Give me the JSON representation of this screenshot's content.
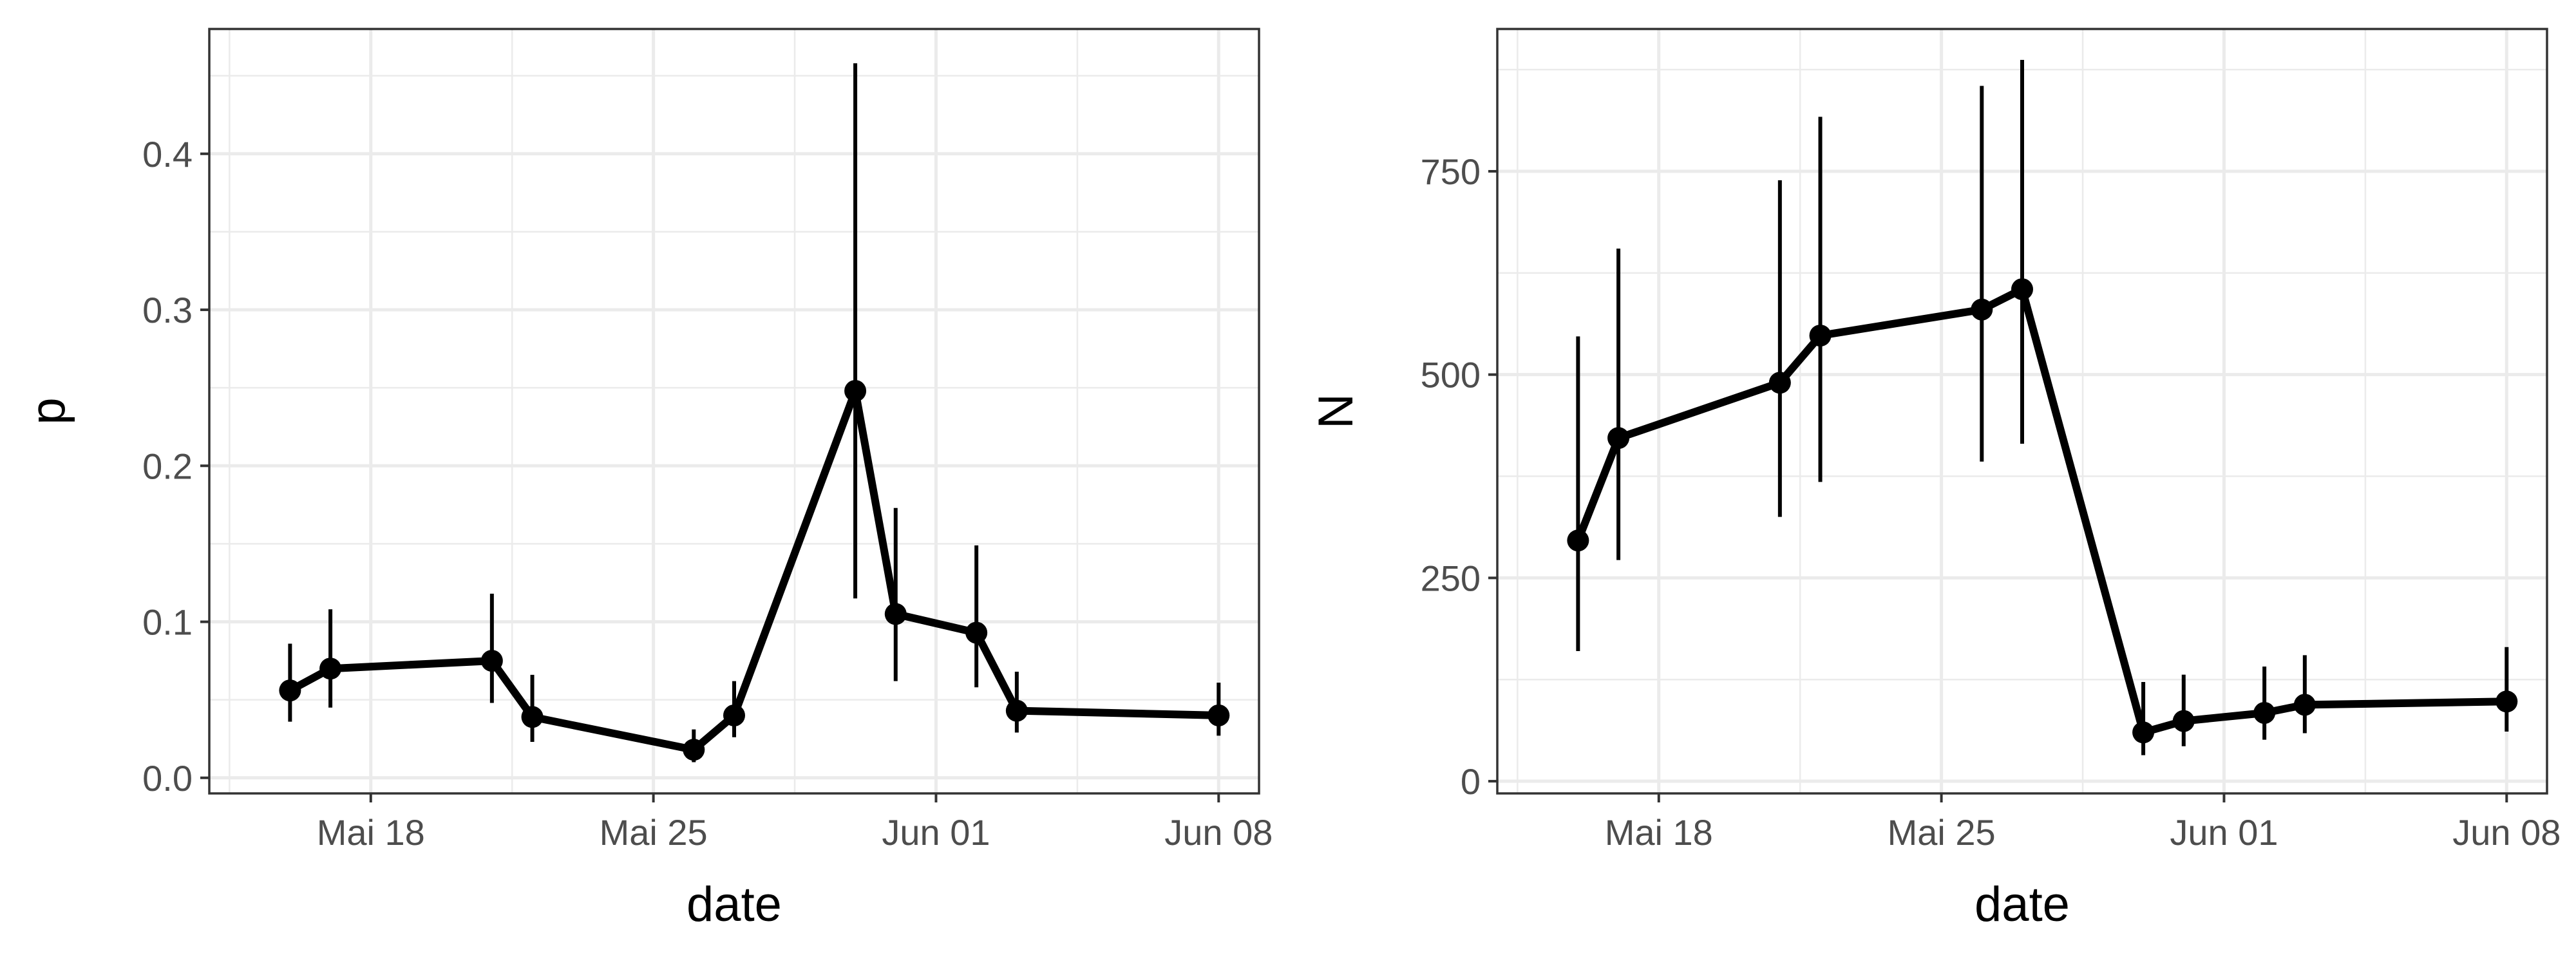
{
  "chart_data": [
    {
      "type": "line",
      "title": "",
      "xlabel": "date",
      "ylabel": "p",
      "xlim": [
        "2020-05-14",
        "2020-06-09"
      ],
      "ylim": [
        -0.01,
        0.48
      ],
      "x_ticks": [
        {
          "date": "2020-05-18",
          "label": "Mai 18"
        },
        {
          "date": "2020-05-25",
          "label": "Mai 25"
        },
        {
          "date": "2020-06-01",
          "label": "Jun 01"
        },
        {
          "date": "2020-06-08",
          "label": "Jun 08"
        }
      ],
      "y_ticks": [
        {
          "value": 0.0,
          "label": "0.0"
        },
        {
          "value": 0.1,
          "label": "0.1"
        },
        {
          "value": 0.2,
          "label": "0.2"
        },
        {
          "value": 0.3,
          "label": "0.3"
        },
        {
          "value": 0.4,
          "label": "0.4"
        }
      ],
      "grid": true,
      "points": [
        {
          "x": "2020-05-16",
          "y": 0.056,
          "ymin": 0.036,
          "ymax": 0.086
        },
        {
          "x": "2020-05-17",
          "y": 0.07,
          "ymin": 0.045,
          "ymax": 0.108
        },
        {
          "x": "2020-05-21",
          "y": 0.075,
          "ymin": 0.048,
          "ymax": 0.118
        },
        {
          "x": "2020-05-22",
          "y": 0.039,
          "ymin": 0.023,
          "ymax": 0.066
        },
        {
          "x": "2020-05-26",
          "y": 0.018,
          "ymin": 0.01,
          "ymax": 0.031
        },
        {
          "x": "2020-05-27",
          "y": 0.04,
          "ymin": 0.026,
          "ymax": 0.062
        },
        {
          "x": "2020-05-30",
          "y": 0.248,
          "ymin": 0.115,
          "ymax": 0.458
        },
        {
          "x": "2020-05-31",
          "y": 0.105,
          "ymin": 0.062,
          "ymax": 0.173
        },
        {
          "x": "2020-06-02",
          "y": 0.093,
          "ymin": 0.058,
          "ymax": 0.149
        },
        {
          "x": "2020-06-03",
          "y": 0.043,
          "ymin": 0.029,
          "ymax": 0.068
        },
        {
          "x": "2020-06-08",
          "y": 0.04,
          "ymin": 0.027,
          "ymax": 0.061
        }
      ]
    },
    {
      "type": "line",
      "title": "",
      "xlabel": "date",
      "ylabel": "N",
      "xlim": [
        "2020-05-14",
        "2020-06-09"
      ],
      "ylim": [
        -15,
        925
      ],
      "x_ticks": [
        {
          "date": "2020-05-18",
          "label": "Mai 18"
        },
        {
          "date": "2020-05-25",
          "label": "Mai 25"
        },
        {
          "date": "2020-06-01",
          "label": "Jun 01"
        },
        {
          "date": "2020-06-08",
          "label": "Jun 08"
        }
      ],
      "y_ticks": [
        {
          "value": 0,
          "label": "0"
        },
        {
          "value": 250,
          "label": "250"
        },
        {
          "value": 500,
          "label": "500"
        },
        {
          "value": 750,
          "label": "750"
        }
      ],
      "grid": true,
      "points": [
        {
          "x": "2020-05-16",
          "y": 296,
          "ymin": 160,
          "ymax": 547
        },
        {
          "x": "2020-05-17",
          "y": 422,
          "ymin": 272,
          "ymax": 655
        },
        {
          "x": "2020-05-21",
          "y": 490,
          "ymin": 325,
          "ymax": 739
        },
        {
          "x": "2020-05-22",
          "y": 548,
          "ymin": 368,
          "ymax": 817
        },
        {
          "x": "2020-05-26",
          "y": 580,
          "ymin": 393,
          "ymax": 855
        },
        {
          "x": "2020-05-27",
          "y": 605,
          "ymin": 415,
          "ymax": 887
        },
        {
          "x": "2020-05-30",
          "y": 60,
          "ymin": 32,
          "ymax": 122
        },
        {
          "x": "2020-05-31",
          "y": 74,
          "ymin": 43,
          "ymax": 131
        },
        {
          "x": "2020-06-02",
          "y": 84,
          "ymin": 51,
          "ymax": 141
        },
        {
          "x": "2020-06-03",
          "y": 94,
          "ymin": 59,
          "ymax": 155
        },
        {
          "x": "2020-06-08",
          "y": 98,
          "ymin": 61,
          "ymax": 165
        }
      ]
    }
  ]
}
